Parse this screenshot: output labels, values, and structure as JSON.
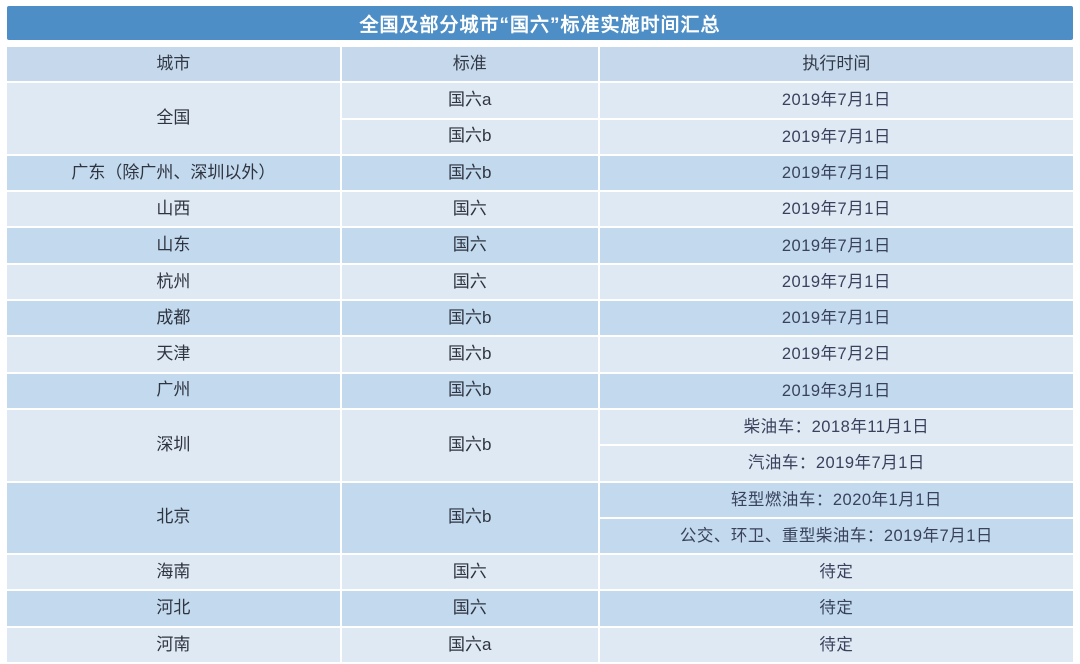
{
  "title": "全国及部分城市“国六”标准实施时间汇总",
  "colors": {
    "background": "#ffffff",
    "title_bar": "#4e8ec7",
    "title_text": "#ffffff",
    "header_row": "#c6d9ec",
    "row_light": "#dfe9f4",
    "row_dark": "#c3d9ee",
    "cell_text": "#2e3440",
    "time_text": "#39425c"
  },
  "table": {
    "headers": [
      "城市",
      "标准",
      "执行时间"
    ],
    "rows": [
      {
        "city": "全国",
        "sub": [
          {
            "standard": "国六a",
            "time": "2019年7月1日"
          },
          {
            "standard": "国六b",
            "time": "2019年7月1日"
          }
        ]
      },
      {
        "city": "广东（除广州、深圳以外）",
        "sub": [
          {
            "standard": "国六b",
            "time": "2019年7月1日"
          }
        ]
      },
      {
        "city": "山西",
        "sub": [
          {
            "standard": "国六",
            "time": "2019年7月1日"
          }
        ]
      },
      {
        "city": "山东",
        "sub": [
          {
            "standard": "国六",
            "time": "2019年7月1日"
          }
        ]
      },
      {
        "city": "杭州",
        "sub": [
          {
            "standard": "国六",
            "time": "2019年7月1日"
          }
        ]
      },
      {
        "city": "成都",
        "sub": [
          {
            "standard": "国六b",
            "time": "2019年7月1日"
          }
        ]
      },
      {
        "city": "天津",
        "sub": [
          {
            "standard": "国六b",
            "time": "2019年7月2日"
          }
        ]
      },
      {
        "city": "广州",
        "sub": [
          {
            "standard": "国六b",
            "time": "2019年3月1日"
          }
        ]
      },
      {
        "city": "深圳",
        "standard": "国六b",
        "times": [
          "柴油车：2018年11月1日",
          "汽油车：2019年7月1日"
        ]
      },
      {
        "city": "北京",
        "standard": "国六b",
        "times": [
          "轻型燃油车：2020年1月1日",
          "公交、环卫、重型柴油车：2019年7月1日"
        ]
      },
      {
        "city": "海南",
        "sub": [
          {
            "standard": "国六",
            "time": "待定"
          }
        ]
      },
      {
        "city": "河北",
        "sub": [
          {
            "standard": "国六",
            "time": "待定"
          }
        ]
      },
      {
        "city": "河南",
        "sub": [
          {
            "standard": "国六a",
            "time": "待定"
          }
        ]
      }
    ]
  },
  "chart_data": {
    "type": "table",
    "title": "全国及部分城市“国六”标准实施时间汇总",
    "columns": [
      "城市",
      "标准",
      "执行时间"
    ],
    "rows": [
      [
        "全国",
        "国六a",
        "2019年7月1日"
      ],
      [
        "全国",
        "国六b",
        "2019年7月1日"
      ],
      [
        "广东（除广州、深圳以外）",
        "国六b",
        "2019年7月1日"
      ],
      [
        "山西",
        "国六",
        "2019年7月1日"
      ],
      [
        "山东",
        "国六",
        "2019年7月1日"
      ],
      [
        "杭州",
        "国六",
        "2019年7月1日"
      ],
      [
        "成都",
        "国六b",
        "2019年7月1日"
      ],
      [
        "天津",
        "国六b",
        "2019年7月2日"
      ],
      [
        "广州",
        "国六b",
        "2019年3月1日"
      ],
      [
        "深圳",
        "国六b",
        "柴油车：2018年11月1日"
      ],
      [
        "深圳",
        "国六b",
        "汽油车：2019年7月1日"
      ],
      [
        "北京",
        "国六b",
        "轻型燃油车：2020年1月1日"
      ],
      [
        "北京",
        "国六b",
        "公交、环卫、重型柴油车：2019年7月1日"
      ],
      [
        "海南",
        "国六",
        "待定"
      ],
      [
        "河北",
        "国六",
        "待定"
      ],
      [
        "河南",
        "国六a",
        "待定"
      ]
    ]
  }
}
